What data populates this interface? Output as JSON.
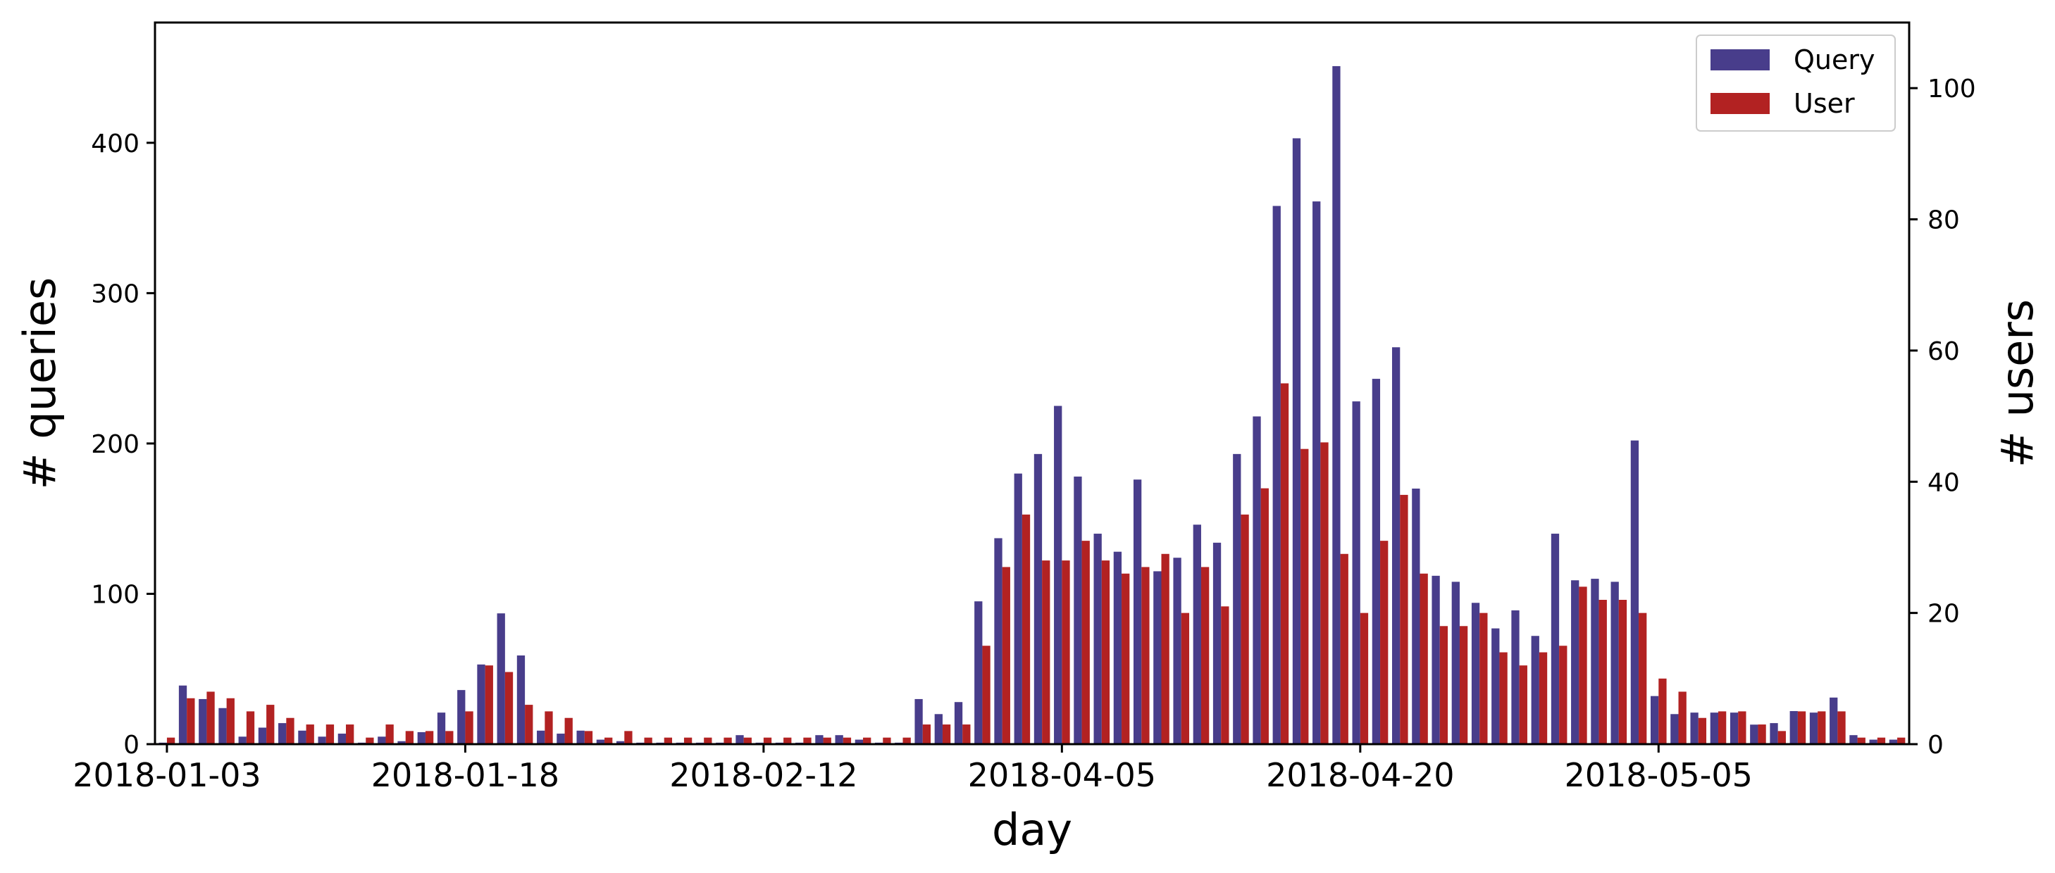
{
  "chart_data": {
    "type": "bar",
    "title": "",
    "xlabel": "day",
    "ylabel_left": "# queries",
    "ylabel_right": "# users",
    "ylim_left": [
      0,
      480
    ],
    "ylim_right": [
      0,
      110
    ],
    "yticks_left": [
      0,
      100,
      200,
      300,
      400
    ],
    "yticks_right": [
      0,
      20,
      40,
      60,
      80,
      100
    ],
    "xtick_labels": [
      "2018-01-03",
      "2018-01-18",
      "2018-02-12",
      "2018-04-05",
      "2018-04-20",
      "2018-05-05"
    ],
    "xtick_indices": [
      0,
      15,
      30,
      45,
      60,
      75
    ],
    "legend_position": "top-right",
    "grid": false,
    "colors": {
      "query": "#483D8B",
      "user": "#B22222"
    },
    "series": [
      {
        "name": "Query",
        "axis": "left",
        "values": [
          1,
          39,
          30,
          24,
          5,
          11,
          14,
          9,
          5,
          7,
          1,
          5,
          2,
          8,
          21,
          36,
          53,
          87,
          59,
          9,
          7,
          9,
          3,
          2,
          1,
          1,
          1,
          1,
          1,
          6,
          1,
          1,
          1,
          6,
          6,
          3,
          1,
          1,
          30,
          20,
          28,
          95,
          137,
          180,
          193,
          225,
          178,
          140,
          128,
          176,
          115,
          124,
          146,
          134,
          193,
          218,
          358,
          403,
          361,
          451,
          228,
          243,
          264,
          170,
          112,
          108,
          94,
          77,
          89,
          72,
          140,
          109,
          110,
          108,
          202,
          32,
          20,
          21,
          21,
          21,
          13,
          14,
          22,
          21,
          31,
          6,
          3,
          3
        ]
      },
      {
        "name": "User",
        "axis": "right",
        "values": [
          1,
          7,
          8,
          7,
          5,
          6,
          4,
          3,
          3,
          3,
          1,
          3,
          2,
          2,
          2,
          5,
          12,
          11,
          6,
          5,
          4,
          2,
          1,
          2,
          1,
          1,
          1,
          1,
          1,
          1,
          1,
          1,
          1,
          1,
          1,
          1,
          1,
          1,
          3,
          3,
          3,
          15,
          27,
          35,
          28,
          28,
          31,
          28,
          26,
          27,
          29,
          20,
          27,
          21,
          35,
          39,
          55,
          45,
          46,
          29,
          20,
          31,
          38,
          26,
          18,
          18,
          20,
          14,
          12,
          14,
          15,
          24,
          22,
          22,
          20,
          10,
          8,
          4,
          5,
          5,
          3,
          2,
          5,
          5,
          5,
          1,
          1,
          1
        ]
      }
    ]
  }
}
